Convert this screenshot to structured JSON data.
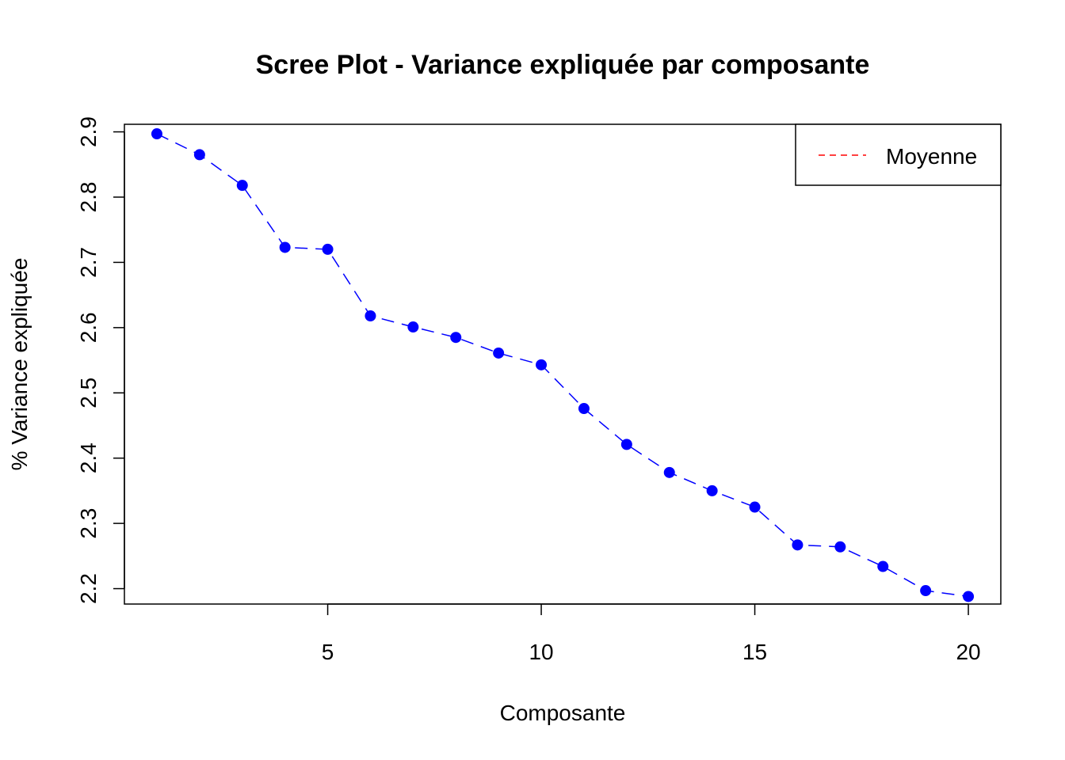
{
  "chart_data": {
    "type": "line",
    "title": "Scree Plot - Variance expliquée par composante",
    "xlabel": "Composante",
    "ylabel": "% Variance expliquée",
    "x": [
      1,
      2,
      3,
      4,
      5,
      6,
      7,
      8,
      9,
      10,
      11,
      12,
      13,
      14,
      15,
      16,
      17,
      18,
      19,
      20
    ],
    "series": [
      {
        "values": [
          2.897,
          2.865,
          2.818,
          2.723,
          2.72,
          2.618,
          2.601,
          2.585,
          2.561,
          2.543,
          2.476,
          2.421,
          2.378,
          2.35,
          2.325,
          2.267,
          2.264,
          2.234,
          2.197,
          2.188
        ],
        "color": "#0000ff",
        "marker": "filled-circle"
      }
    ],
    "xticks": [
      5,
      10,
      15,
      20
    ],
    "yticks": [
      2.2,
      2.3,
      2.4,
      2.5,
      2.6,
      2.7,
      2.8,
      2.9
    ],
    "xlim": [
      0.24,
      20.76
    ],
    "ylim": [
      2.1764,
      2.9116
    ],
    "grid": false,
    "legend": {
      "position": "top-right",
      "entries": [
        {
          "label": "Moyenne",
          "color": "#ff0000",
          "style": "dashed"
        }
      ]
    }
  }
}
